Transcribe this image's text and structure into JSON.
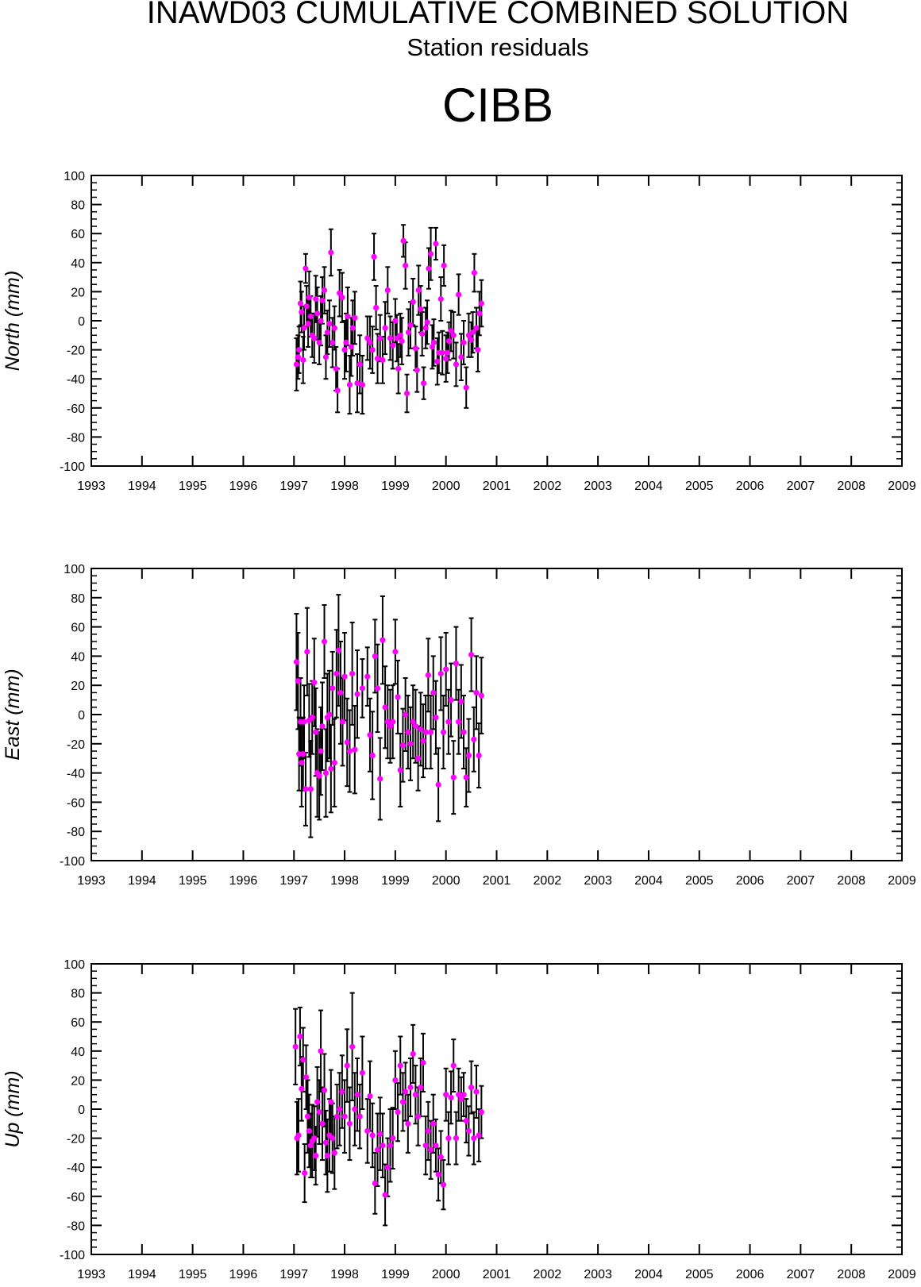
{
  "title": "INAWD03 CUMULATIVE COMBINED SOLUTION",
  "subtitle": "Station residuals",
  "station": "CIBB",
  "colors": {
    "marker": "#ff00ff",
    "errorbar": "#000000",
    "axis": "#000000"
  },
  "chart_data": [
    {
      "type": "scatter",
      "ylabel": "North (mm)",
      "xlim": [
        1993,
        2009
      ],
      "ylim": [
        -100,
        100
      ],
      "xticks": [
        1993,
        1994,
        1995,
        1996,
        1997,
        1998,
        1999,
        2000,
        2001,
        2002,
        2003,
        2004,
        2005,
        2006,
        2007,
        2008,
        2009
      ],
      "yticks": [
        -100,
        -80,
        -60,
        -40,
        -20,
        0,
        20,
        40,
        60,
        80,
        100
      ],
      "x": [
        1997.05,
        1997.08,
        1997.1,
        1997.13,
        1997.15,
        1997.18,
        1997.2,
        1997.23,
        1997.25,
        1997.28,
        1997.3,
        1997.33,
        1997.36,
        1997.4,
        1997.43,
        1997.46,
        1997.5,
        1997.53,
        1997.56,
        1997.6,
        1997.63,
        1997.66,
        1997.7,
        1997.73,
        1997.76,
        1997.8,
        1997.83,
        1997.86,
        1997.9,
        1997.95,
        1998.0,
        1998.03,
        1998.06,
        1998.1,
        1998.13,
        1998.16,
        1998.2,
        1998.25,
        1998.3,
        1998.35,
        1998.45,
        1998.5,
        1998.55,
        1998.58,
        1998.62,
        1998.65,
        1998.7,
        1998.75,
        1998.8,
        1998.85,
        1998.9,
        1998.95,
        1999.0,
        1999.03,
        1999.06,
        1999.1,
        1999.13,
        1999.16,
        1999.2,
        1999.23,
        1999.26,
        1999.3,
        1999.35,
        1999.4,
        1999.43,
        1999.46,
        1999.5,
        1999.53,
        1999.56,
        1999.6,
        1999.63,
        1999.66,
        1999.7,
        1999.73,
        1999.76,
        1999.8,
        1999.83,
        1999.86,
        1999.9,
        1999.93,
        1999.96,
        2000.0,
        2000.03,
        2000.06,
        2000.1,
        2000.15,
        2000.2,
        2000.25,
        2000.3,
        2000.35,
        2000.4,
        2000.45,
        2000.5,
        2000.53,
        2000.56,
        2000.6,
        2000.63,
        2000.66,
        2000.7
      ],
      "y": [
        -30,
        -25,
        -20,
        12,
        6,
        -27,
        -5,
        36,
        10,
        -2,
        16,
        3,
        -10,
        -12,
        15,
        5,
        -15,
        0,
        14,
        21,
        -25,
        -8,
        -2,
        47,
        -15,
        -5,
        -33,
        -48,
        19,
        16,
        -20,
        -15,
        3,
        -44,
        -18,
        -5,
        2,
        -43,
        -30,
        -44,
        -12,
        -15,
        -20,
        44,
        9,
        -26,
        -12,
        -27,
        -5,
        21,
        -12,
        -17,
        0,
        -12,
        -33,
        -10,
        -14,
        55,
        38,
        -50,
        -8,
        -3,
        13,
        -19,
        -34,
        21,
        8,
        -9,
        -43,
        -5,
        -1,
        36,
        46,
        -18,
        -15,
        53,
        -28,
        -22,
        15,
        -22,
        38,
        -26,
        -22,
        -14,
        -7,
        -10,
        -30,
        18,
        -25,
        -15,
        -46,
        -10,
        -13,
        -8,
        33,
        -5,
        -20,
        5,
        12
      ],
      "err": [
        18,
        15,
        16,
        15,
        14,
        16,
        15,
        10,
        14,
        16,
        18,
        14,
        15,
        17,
        16,
        18,
        15,
        17,
        16,
        16,
        15,
        15,
        16,
        16,
        17,
        15,
        15,
        15,
        16,
        17,
        20,
        20,
        20,
        20,
        20,
        19,
        18,
        20,
        20,
        20,
        15,
        18,
        16,
        16,
        15,
        17,
        16,
        16,
        18,
        16,
        15,
        16,
        15,
        16,
        17,
        15,
        16,
        11,
        16,
        13,
        16,
        16,
        16,
        15,
        15,
        17,
        16,
        15,
        11,
        14,
        15,
        14,
        18,
        15,
        16,
        11,
        16,
        14,
        15,
        15,
        14,
        16,
        14,
        13,
        14,
        16,
        15,
        14,
        16,
        15,
        14,
        15,
        12,
        14,
        13,
        14,
        15,
        15,
        16
      ]
    },
    {
      "type": "scatter",
      "ylabel": "East (mm)",
      "xlim": [
        1993,
        2009
      ],
      "ylim": [
        -100,
        100
      ],
      "xticks": [
        1993,
        1994,
        1995,
        1996,
        1997,
        1998,
        1999,
        2000,
        2001,
        2002,
        2003,
        2004,
        2005,
        2006,
        2007,
        2008,
        2009
      ],
      "yticks": [
        -100,
        -80,
        -60,
        -40,
        -20,
        0,
        20,
        40,
        60,
        80,
        100
      ],
      "x": [
        1997.05,
        1997.08,
        1997.1,
        1997.13,
        1997.15,
        1997.18,
        1997.2,
        1997.23,
        1997.26,
        1997.3,
        1997.33,
        1997.36,
        1997.4,
        1997.43,
        1997.46,
        1997.5,
        1997.53,
        1997.56,
        1997.6,
        1997.63,
        1997.66,
        1997.7,
        1997.73,
        1997.76,
        1997.8,
        1997.84,
        1997.88,
        1997.92,
        1997.96,
        1998.0,
        1998.05,
        1998.1,
        1998.15,
        1998.2,
        1998.25,
        1998.35,
        1998.45,
        1998.5,
        1998.55,
        1998.6,
        1998.65,
        1998.7,
        1998.75,
        1998.8,
        1998.85,
        1998.9,
        1998.95,
        1999.0,
        1999.05,
        1999.1,
        1999.15,
        1999.2,
        1999.25,
        1999.3,
        1999.35,
        1999.4,
        1999.45,
        1999.5,
        1999.55,
        1999.6,
        1999.65,
        1999.7,
        1999.75,
        1999.8,
        1999.85,
        1999.9,
        1999.95,
        2000.0,
        2000.05,
        2000.1,
        2000.15,
        2000.2,
        2000.25,
        2000.3,
        2000.35,
        2000.4,
        2000.45,
        2000.5,
        2000.55,
        2000.6,
        2000.65,
        2000.7
      ],
      "y": [
        36,
        23,
        -27,
        -5,
        -33,
        -27,
        -5,
        -51,
        43,
        -4,
        -51,
        -2,
        22,
        -12,
        -40,
        -42,
        -25,
        -8,
        50,
        -40,
        -2,
        0,
        -37,
        18,
        -33,
        28,
        44,
        15,
        -5,
        26,
        -19,
        -25,
        28,
        -24,
        14,
        18,
        26,
        -14,
        -28,
        40,
        18,
        -44,
        51,
        5,
        -5,
        -8,
        -5,
        43,
        12,
        -38,
        -21,
        0,
        -12,
        -20,
        -5,
        -8,
        -30,
        -10,
        -18,
        -12,
        27,
        -12,
        15,
        -2,
        -48,
        28,
        -12,
        31,
        -5,
        10,
        -43,
        35,
        -5,
        9,
        -12,
        -43,
        -28,
        41,
        -17,
        15,
        -28,
        13
      ],
      "err": [
        33,
        33,
        25,
        30,
        30,
        25,
        25,
        25,
        30,
        25,
        33,
        25,
        30,
        30,
        30,
        30,
        30,
        30,
        25,
        30,
        30,
        30,
        30,
        25,
        30,
        30,
        38,
        35,
        30,
        30,
        30,
        28,
        35,
        30,
        30,
        20,
        20,
        25,
        30,
        25,
        30,
        28,
        30,
        28,
        25,
        25,
        25,
        22,
        25,
        25,
        25,
        25,
        25,
        25,
        25,
        25,
        22,
        25,
        25,
        25,
        25,
        25,
        25,
        25,
        25,
        25,
        25,
        25,
        22,
        25,
        25,
        25,
        22,
        25,
        25,
        20,
        25,
        25,
        22,
        25,
        22,
        26
      ]
    },
    {
      "type": "scatter",
      "ylabel": "Up (mm)",
      "xlim": [
        1993,
        2009
      ],
      "ylim": [
        -100,
        100
      ],
      "xticks": [
        1993,
        1994,
        1995,
        1996,
        1997,
        1998,
        1999,
        2000,
        2001,
        2002,
        2003,
        2004,
        2005,
        2006,
        2007,
        2008,
        2009
      ],
      "yticks": [
        -100,
        -80,
        -60,
        -40,
        -20,
        0,
        20,
        40,
        60,
        80,
        100
      ],
      "x": [
        1997.03,
        1997.06,
        1997.09,
        1997.12,
        1997.15,
        1997.18,
        1997.21,
        1997.24,
        1997.27,
        1997.3,
        1997.33,
        1997.36,
        1997.4,
        1997.43,
        1997.46,
        1997.5,
        1997.53,
        1997.56,
        1997.6,
        1997.63,
        1997.66,
        1997.7,
        1997.73,
        1997.76,
        1997.8,
        1997.85,
        1997.9,
        1997.95,
        1998.0,
        1998.05,
        1998.1,
        1998.15,
        1998.2,
        1998.25,
        1998.3,
        1998.35,
        1998.45,
        1998.5,
        1998.55,
        1998.6,
        1998.65,
        1998.7,
        1998.75,
        1998.8,
        1998.85,
        1998.9,
        1998.95,
        1999.0,
        1999.05,
        1999.1,
        1999.15,
        1999.2,
        1999.25,
        1999.3,
        1999.35,
        1999.4,
        1999.45,
        1999.5,
        1999.55,
        1999.6,
        1999.65,
        1999.7,
        1999.75,
        1999.8,
        1999.85,
        1999.9,
        1999.95,
        2000.0,
        2000.05,
        2000.1,
        2000.15,
        2000.2,
        2000.25,
        2000.3,
        2000.35,
        2000.4,
        2000.45,
        2000.5,
        2000.55,
        2000.6,
        2000.65,
        2000.7
      ],
      "y": [
        43,
        -20,
        -18,
        50,
        14,
        34,
        -44,
        22,
        -5,
        -15,
        -25,
        -22,
        -20,
        -32,
        5,
        -2,
        40,
        -10,
        13,
        -23,
        -32,
        -18,
        5,
        -20,
        -30,
        -5,
        0,
        12,
        -5,
        30,
        -10,
        43,
        0,
        10,
        -5,
        25,
        -15,
        9,
        -18,
        -51,
        -28,
        -17,
        -25,
        -59,
        -40,
        -25,
        -20,
        20,
        -2,
        30,
        5,
        12,
        -10,
        15,
        38,
        10,
        -5,
        15,
        32,
        -25,
        -15,
        -28,
        -10,
        -25,
        -45,
        -33,
        -52,
        10,
        -20,
        8,
        30,
        -20,
        10,
        7,
        10,
        -8,
        -15,
        15,
        -20,
        12,
        -18,
        -2
      ],
      "err": [
        26,
        25,
        25,
        20,
        22,
        22,
        20,
        22,
        25,
        25,
        22,
        25,
        22,
        20,
        24,
        22,
        28,
        25,
        25,
        22,
        25,
        25,
        22,
        24,
        25,
        22,
        25,
        25,
        25,
        25,
        25,
        37,
        25,
        25,
        22,
        25,
        22,
        24,
        22,
        21,
        25,
        25,
        22,
        21,
        20,
        25,
        21,
        20,
        20,
        20,
        20,
        20,
        20,
        20,
        20,
        20,
        20,
        20,
        20,
        20,
        20,
        20,
        20,
        18,
        18,
        18,
        17,
        18,
        18,
        18,
        18,
        18,
        18,
        15,
        15,
        15,
        17,
        18,
        18,
        18,
        18,
        18
      ]
    }
  ]
}
